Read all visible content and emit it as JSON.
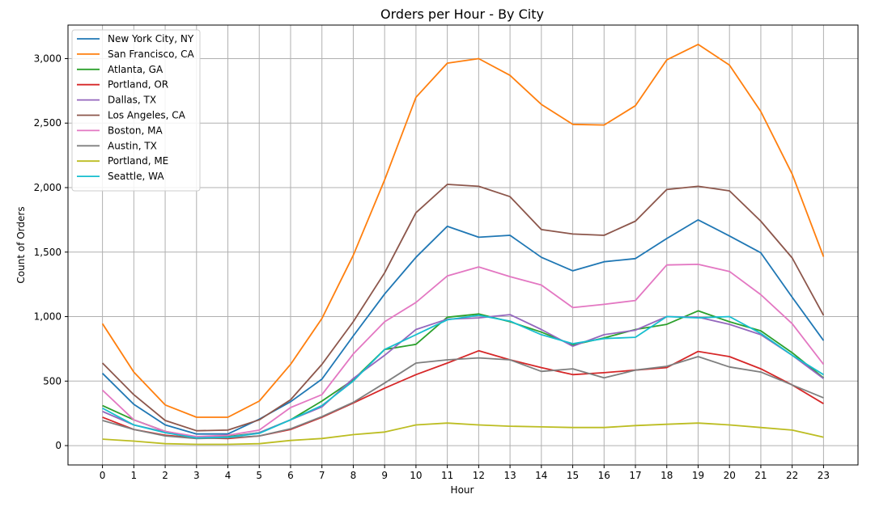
{
  "chart_data": {
    "type": "line",
    "title": "Orders per Hour - By City",
    "xlabel": "Hour",
    "ylabel": "Count of Orders",
    "x": [
      0,
      1,
      2,
      3,
      4,
      5,
      6,
      7,
      8,
      9,
      10,
      11,
      12,
      13,
      14,
      15,
      16,
      17,
      18,
      19,
      20,
      21,
      22,
      23
    ],
    "x_tick_labels": [
      "0",
      "1",
      "2",
      "3",
      "4",
      "5",
      "6",
      "7",
      "8",
      "9",
      "10",
      "11",
      "12",
      "13",
      "14",
      "15",
      "16",
      "17",
      "18",
      "19",
      "20",
      "21",
      "22",
      "23"
    ],
    "xlim": [
      -1.1,
      24.1
    ],
    "ylim": [
      -150,
      3260
    ],
    "y_ticks": [
      0,
      500,
      1000,
      1500,
      2000,
      2500,
      3000
    ],
    "y_tick_labels": [
      "0",
      "500",
      "1,000",
      "1,500",
      "2,000",
      "2,500",
      "3,000"
    ],
    "grid": true,
    "legend_position": "top-left",
    "series": [
      {
        "name": "New York City, NY",
        "color": "#1f77b4",
        "values": [
          560,
          320,
          160,
          90,
          90,
          205,
          340,
          515,
          850,
          1175,
          1460,
          1700,
          1615,
          1630,
          1460,
          1355,
          1425,
          1450,
          1605,
          1750,
          1625,
          1495,
          1150,
          815
        ]
      },
      {
        "name": "San Francisco, CA",
        "color": "#ff7f0e",
        "values": [
          945,
          570,
          315,
          220,
          220,
          345,
          630,
          985,
          1475,
          2060,
          2700,
          2965,
          3000,
          2870,
          2645,
          2490,
          2485,
          2635,
          2990,
          3110,
          2950,
          2590,
          2105,
          1465
        ]
      },
      {
        "name": "Atlanta, GA",
        "color": "#2ca02c",
        "values": [
          310,
          200,
          110,
          65,
          70,
          100,
          200,
          345,
          510,
          745,
          785,
          995,
          1020,
          960,
          880,
          780,
          835,
          900,
          940,
          1045,
          960,
          890,
          720,
          525
        ]
      },
      {
        "name": "Portland, OR",
        "color": "#d62728",
        "values": [
          220,
          125,
          80,
          60,
          55,
          75,
          125,
          220,
          330,
          445,
          550,
          640,
          735,
          665,
          605,
          550,
          565,
          585,
          605,
          730,
          690,
          595,
          470,
          325
        ]
      },
      {
        "name": "Dallas, TX",
        "color": "#9467bd",
        "values": [
          265,
          160,
          105,
          65,
          65,
          100,
          200,
          300,
          520,
          700,
          900,
          980,
          990,
          1015,
          900,
          770,
          860,
          895,
          1000,
          995,
          940,
          860,
          700,
          520
        ]
      },
      {
        "name": "Los Angeles, CA",
        "color": "#8c564b",
        "values": [
          640,
          395,
          195,
          115,
          120,
          200,
          355,
          630,
          960,
          1340,
          1805,
          2025,
          2010,
          1930,
          1675,
          1640,
          1630,
          1740,
          1985,
          2010,
          1975,
          1740,
          1455,
          1010
        ]
      },
      {
        "name": "Boston, MA",
        "color": "#e377c2",
        "values": [
          430,
          200,
          110,
          70,
          80,
          120,
          295,
          395,
          710,
          960,
          1110,
          1315,
          1385,
          1310,
          1245,
          1070,
          1095,
          1125,
          1400,
          1405,
          1350,
          1170,
          945,
          630
        ]
      },
      {
        "name": "Austin, TX",
        "color": "#7f7f7f",
        "values": [
          195,
          125,
          75,
          55,
          60,
          75,
          130,
          225,
          335,
          485,
          640,
          665,
          680,
          665,
          575,
          595,
          525,
          585,
          615,
          690,
          610,
          570,
          470,
          370
        ]
      },
      {
        "name": "Portland, ME",
        "color": "#bcbd22",
        "values": [
          50,
          35,
          15,
          10,
          10,
          15,
          40,
          55,
          85,
          105,
          160,
          175,
          160,
          150,
          145,
          140,
          140,
          155,
          165,
          175,
          160,
          140,
          120,
          65
        ]
      },
      {
        "name": "Seattle, WA",
        "color": "#17becf",
        "values": [
          290,
          160,
          100,
          60,
          65,
          95,
          200,
          310,
          500,
          745,
          860,
          975,
          1010,
          965,
          860,
          790,
          830,
          840,
          1000,
          990,
          1000,
          870,
          700,
          550
        ]
      }
    ]
  }
}
